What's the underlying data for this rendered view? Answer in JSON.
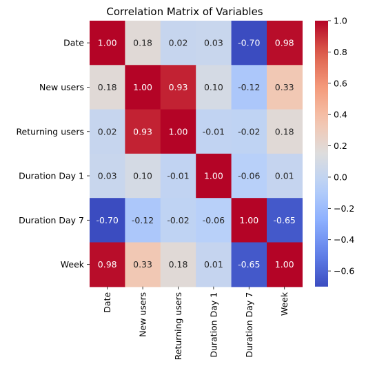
{
  "chart_data": {
    "type": "heatmap",
    "title": "Correlation Matrix of Variables",
    "xlabel": "",
    "ylabel": "",
    "rows": [
      "Date",
      "New users",
      "Returning users",
      "Duration Day 1",
      "Duration Day 7",
      "Week"
    ],
    "cols": [
      "Date",
      "New users",
      "Returning users",
      "Duration Day 1",
      "Duration Day 7",
      "Week"
    ],
    "values": [
      [
        1.0,
        0.18,
        0.02,
        0.03,
        -0.7,
        0.98
      ],
      [
        0.18,
        1.0,
        0.93,
        0.1,
        -0.12,
        0.33
      ],
      [
        0.02,
        0.93,
        1.0,
        -0.01,
        -0.02,
        0.18
      ],
      [
        0.03,
        0.1,
        -0.01,
        1.0,
        -0.06,
        0.01
      ],
      [
        -0.7,
        -0.12,
        -0.02,
        -0.06,
        1.0,
        -0.65
      ],
      [
        0.98,
        0.33,
        0.18,
        0.01,
        -0.65,
        1.0
      ]
    ],
    "value_format": "0.00",
    "colormap": "coolwarm",
    "colorbar": {
      "vmin": -0.7,
      "vmax": 1.0,
      "ticks": [
        1.0,
        0.8,
        0.6,
        0.4,
        0.2,
        0.0,
        -0.2,
        -0.4,
        -0.6
      ],
      "tick_labels": [
        "1.0",
        "0.8",
        "0.6",
        "0.4",
        "0.2",
        "0.0",
        "−0.2",
        "−0.4",
        "−0.6"
      ]
    },
    "grid": false,
    "legend": "colorbar-right"
  }
}
